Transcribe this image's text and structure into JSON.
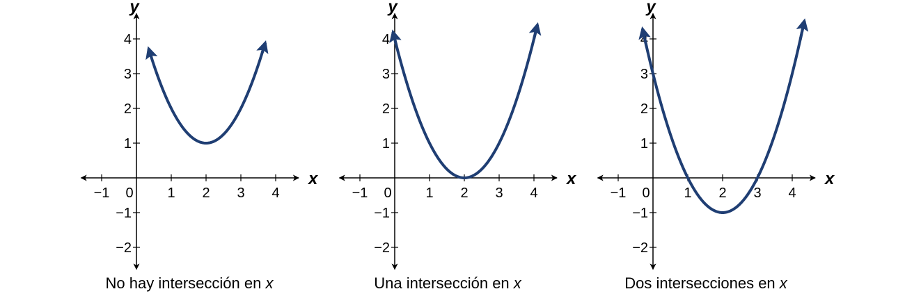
{
  "chart_data": [
    {
      "type": "line",
      "caption": "No hay intersección en",
      "caption_var": "x",
      "xlabel": "x",
      "ylabel": "y",
      "xlim": [
        -1.5,
        4.5
      ],
      "ylim": [
        -2.5,
        4.5
      ],
      "x_ticks": [
        "−1",
        "0",
        "1",
        "2",
        "3",
        "4"
      ],
      "y_ticks": [
        "4",
        "3",
        "2",
        "1",
        "−1",
        "−2"
      ],
      "series": [
        {
          "x": [
            0.35,
            0.5,
            1,
            1.5,
            2,
            2.5,
            3,
            3.5,
            3.7
          ],
          "y": [
            3.92,
            3.25,
            2.0,
            1.25,
            1.0,
            1.25,
            2.0,
            3.25,
            3.89
          ]
        }
      ],
      "vertex": [
        2,
        1
      ],
      "color": "#1f3e73"
    },
    {
      "type": "line",
      "caption": "Una intersección en",
      "caption_var": "x",
      "xlabel": "x",
      "ylabel": "y",
      "xlim": [
        -1.5,
        4.5
      ],
      "ylim": [
        -2.5,
        4.5
      ],
      "x_ticks": [
        "−1",
        "0",
        "1",
        "2",
        "3",
        "4"
      ],
      "y_ticks": [
        "4",
        "3",
        "2",
        "1",
        "−1",
        "−2"
      ],
      "series": [
        {
          "x": [
            -0.05,
            0,
            0.5,
            1,
            1.5,
            2,
            2.5,
            3,
            3.5,
            4,
            4.1
          ],
          "y": [
            4.2,
            4.0,
            2.25,
            1.0,
            0.25,
            0.0,
            0.25,
            1.0,
            2.25,
            4.0,
            4.41
          ]
        }
      ],
      "vertex": [
        2,
        0
      ],
      "color": "#1f3e73"
    },
    {
      "type": "line",
      "caption": "Dos intersecciones en",
      "caption_var": "x",
      "xlabel": "x",
      "ylabel": "y",
      "xlim": [
        -1.5,
        4.5
      ],
      "ylim": [
        -2.5,
        4.5
      ],
      "x_ticks": [
        "−1",
        "0",
        "1",
        "2",
        "3",
        "4"
      ],
      "y_ticks": [
        "4",
        "3",
        "2",
        "1",
        "−1",
        "−2"
      ],
      "series": [
        {
          "x": [
            -0.3,
            0,
            0.5,
            1,
            1.5,
            2,
            2.5,
            3,
            3.5,
            4,
            4.35
          ],
          "y": [
            4.29,
            3.0,
            1.25,
            0.0,
            -0.75,
            -1.0,
            -0.75,
            0.0,
            1.25,
            3.0,
            4.52
          ]
        }
      ],
      "vertex": [
        2,
        -1
      ],
      "color": "#1f3e73"
    }
  ]
}
